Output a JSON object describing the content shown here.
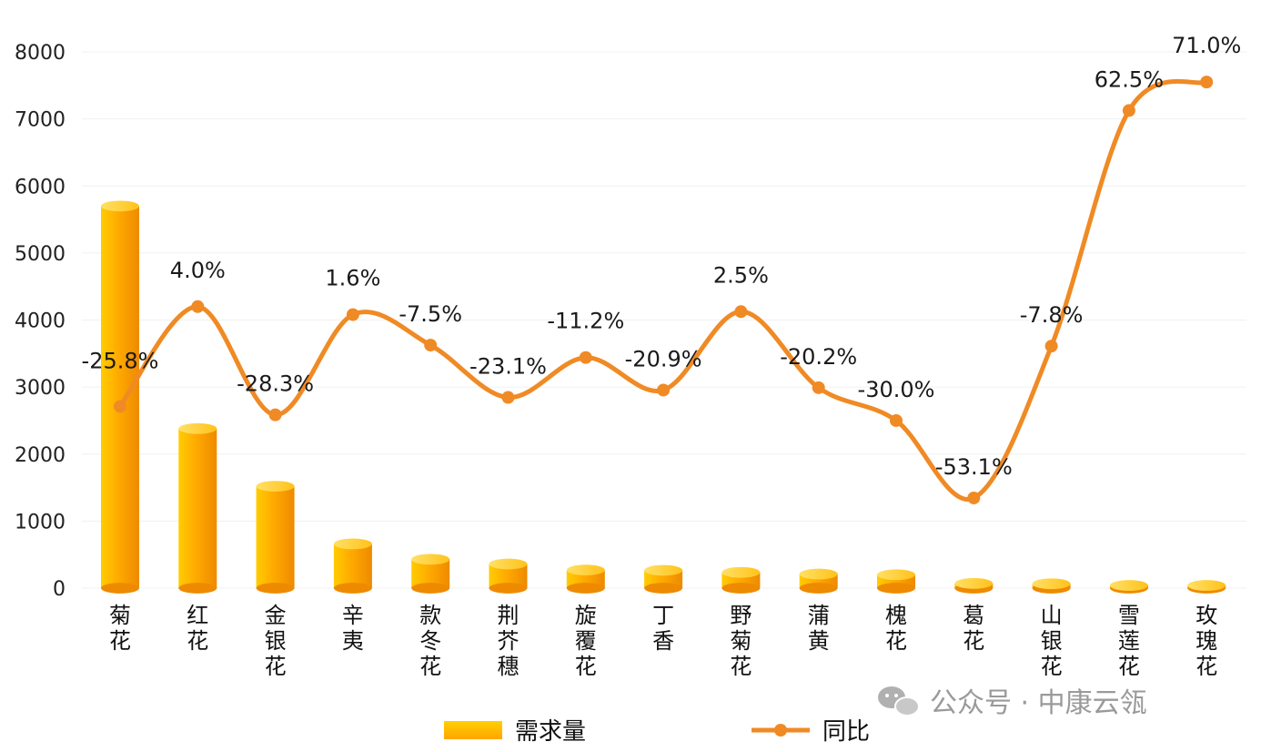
{
  "chart_data": {
    "type": "bar",
    "categories": [
      "菊花",
      "红花",
      "金银花",
      "辛夷",
      "款冬花",
      "荆芥穗",
      "旋覆花",
      "丁香",
      "野菊花",
      "蒲黄",
      "槐花",
      "葛花",
      "山银花",
      "雪莲花",
      "玫瑰花"
    ],
    "series": [
      {
        "name": "需求量",
        "type": "bar",
        "axis": "left",
        "values": [
          5700,
          2380,
          1520,
          660,
          430,
          360,
          270,
          265,
          235,
          210,
          200,
          70,
          65,
          40,
          40
        ]
      },
      {
        "name": "同比",
        "type": "line",
        "axis": "right",
        "unit": "%",
        "values": [
          -25.8,
          4.0,
          -28.3,
          1.6,
          -7.5,
          -23.1,
          -11.2,
          -20.9,
          2.5,
          -20.2,
          -30.0,
          -53.1,
          -7.8,
          62.5,
          71.0
        ],
        "labels": [
          "-25.8%",
          "4.0%",
          "-28.3%",
          "1.6%",
          "-7.5%",
          "-23.1%",
          "-11.2%",
          "-20.9%",
          "2.5%",
          "-20.2%",
          "-30.0%",
          "-53.1%",
          "-7.8%",
          "62.5%",
          "71.0%"
        ]
      }
    ],
    "y_axis": {
      "min": 0,
      "max": 8000,
      "ticks": [
        "0",
        "1000",
        "2000",
        "3000",
        "4000",
        "5000",
        "6000",
        "7000",
        "8000"
      ]
    },
    "y2_axis_range": [
      -80,
      80
    ],
    "grid": true,
    "legend_position": "bottom",
    "title": "",
    "xlabel": "",
    "ylabel": ""
  },
  "legend": {
    "bar_label": "需求量",
    "line_label": "同比"
  },
  "watermark": {
    "text": "公众号 · 中康云瓴"
  },
  "colors": {
    "bar_main": "#ffa500",
    "bar_light": "#ffd000",
    "bar_dark": "#e88500",
    "line": "#f08a24",
    "grid": "#eeeeee"
  }
}
